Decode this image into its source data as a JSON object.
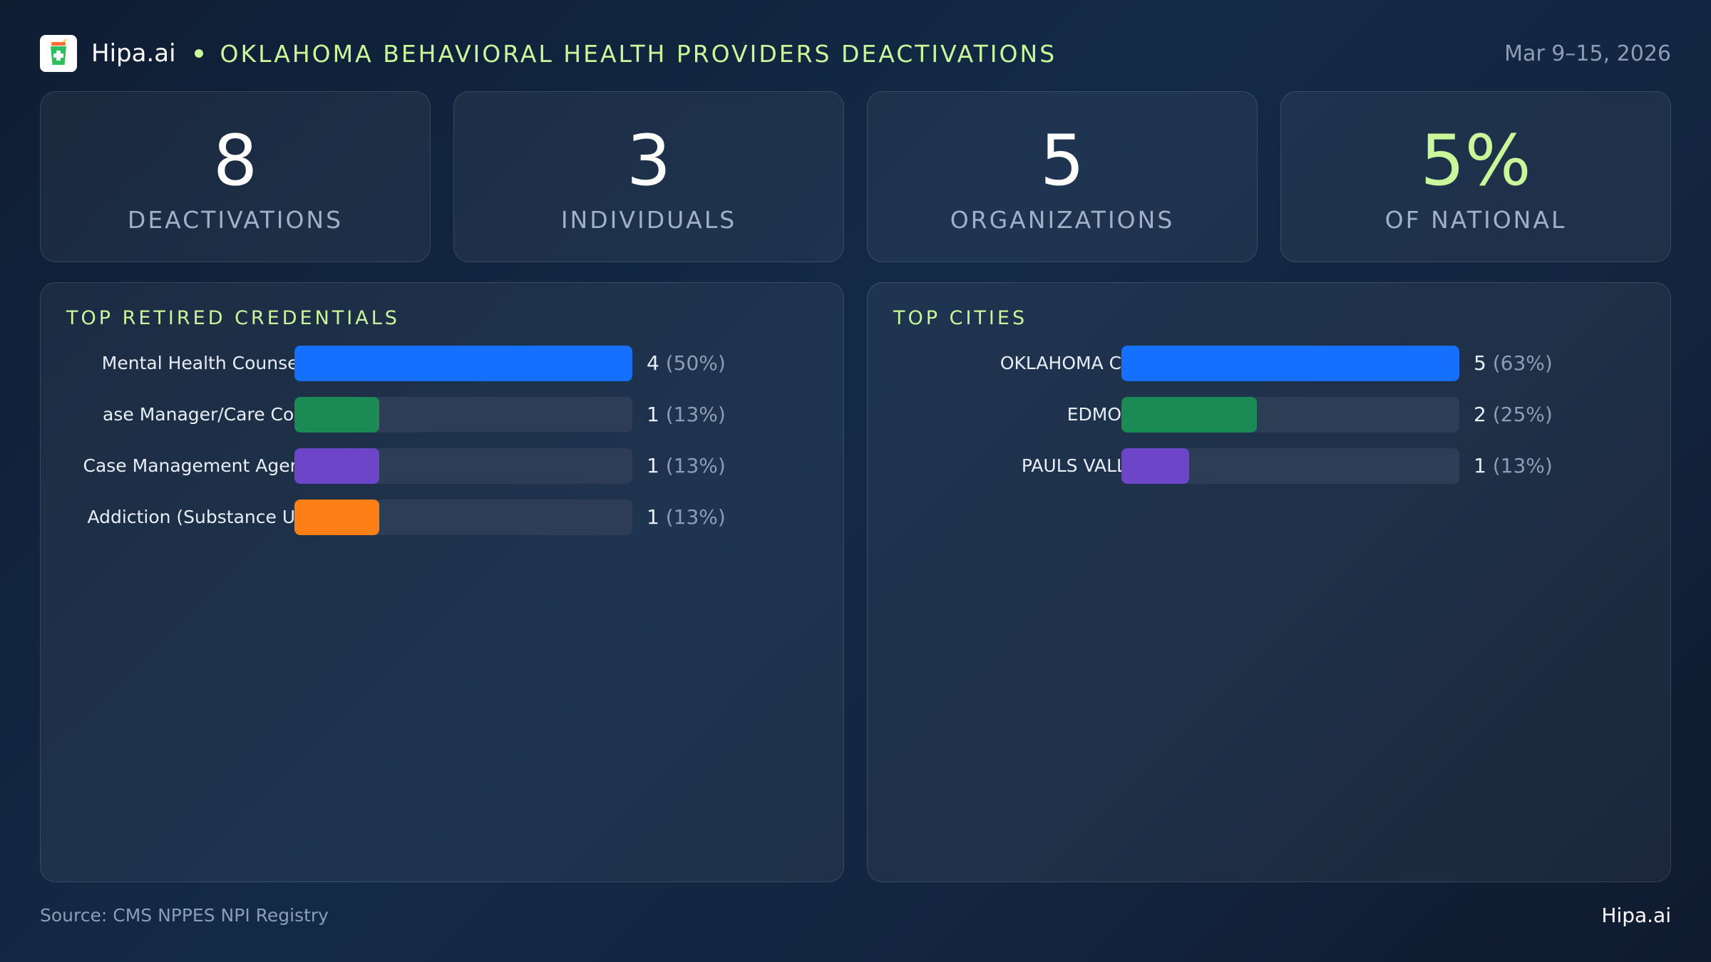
{
  "header": {
    "brand": "Hipa.ai",
    "title": "OKLAHOMA BEHAVIORAL HEALTH PROVIDERS DEACTIVATIONS",
    "date": "Mar 9–15, 2026",
    "logo_icon": "medical-cup-icon"
  },
  "kpis": [
    {
      "value": "8",
      "label": "DEACTIVATIONS"
    },
    {
      "value": "3",
      "label": "INDIVIDUALS"
    },
    {
      "value": "5",
      "label": "ORGANIZATIONS"
    },
    {
      "value": "5%",
      "label": "OF NATIONAL"
    }
  ],
  "colors": {
    "accent": "#c9f79a",
    "blue": "#1570ff",
    "green": "#1c8a55",
    "purple": "#6c45c8",
    "orange": "#ff7f17",
    "track": "#2c3d55"
  },
  "chart_data": [
    {
      "type": "bar",
      "orientation": "horizontal",
      "title": "TOP RETIRED CREDENTIALS",
      "categories": [
        "Mental Health Counselor",
        "ase Manager/Care Coo...",
        "Case Management Agency",
        "Addiction (Substance Us..."
      ],
      "values": [
        4,
        1,
        1,
        1
      ],
      "percent_labels": [
        "(50%)",
        "(13%)",
        "(13%)",
        "(13%)"
      ],
      "colors": [
        "#1570ff",
        "#1c8a55",
        "#6c45c8",
        "#ff7f17"
      ],
      "xlim": [
        0,
        4
      ]
    },
    {
      "type": "bar",
      "orientation": "horizontal",
      "title": "TOP CITIES",
      "categories": [
        "OKLAHOMA CITY",
        "EDMOND",
        "PAULS VALLEY"
      ],
      "values": [
        5,
        2,
        1
      ],
      "percent_labels": [
        "(63%)",
        "(25%)",
        "(13%)"
      ],
      "colors": [
        "#1570ff",
        "#1c8a55",
        "#6c45c8"
      ],
      "xlim": [
        0,
        5
      ]
    }
  ],
  "footer": {
    "source": "Source: CMS NPPES NPI Registry",
    "brand": "Hipa.ai"
  }
}
